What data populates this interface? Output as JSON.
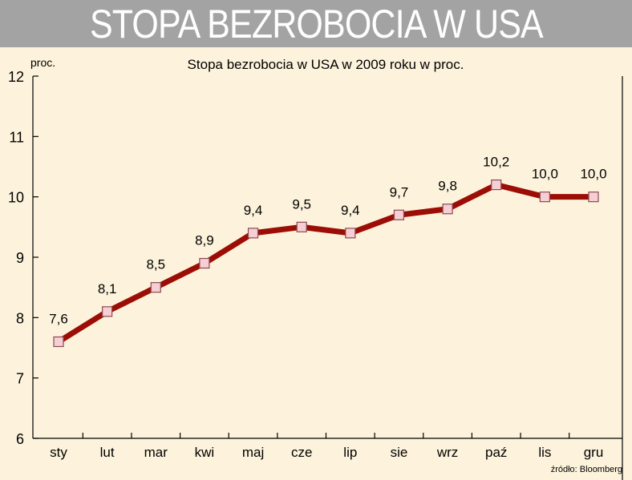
{
  "header": {
    "title": "STOPA BEZROBOCIA W USA"
  },
  "chart_data": {
    "type": "line",
    "title": "Stopa bezrobocia w USA w 2009 roku w proc.",
    "ylabel": "proc.",
    "xlabel": "",
    "categories": [
      "sty",
      "lut",
      "mar",
      "kwi",
      "maj",
      "cze",
      "lip",
      "sie",
      "wrz",
      "paź",
      "lis",
      "gru"
    ],
    "series": [
      {
        "values": [
          7.6,
          8.1,
          8.5,
          8.9,
          9.4,
          9.5,
          9.4,
          9.7,
          9.8,
          10.2,
          10.0,
          10.0
        ],
        "labels": [
          "7,6",
          "8,1",
          "8,5",
          "8,9",
          "9,4",
          "9,5",
          "9,4",
          "9,7",
          "9,8",
          "10,2",
          "10,0",
          "10,0"
        ],
        "color": "#9b0d05",
        "marker_fill": "#f6cfd4",
        "marker_stroke": "#8a4a52"
      }
    ],
    "ylim": [
      6,
      12
    ],
    "yticks": [
      "6",
      "7",
      "8",
      "9",
      "10",
      "11",
      "12"
    ],
    "grid": false,
    "source": "źródło: Bloomberg"
  },
  "colors": {
    "background": "#fdf3dc",
    "header_bg": "#a3a3a3",
    "header_text": "#ffffff"
  }
}
